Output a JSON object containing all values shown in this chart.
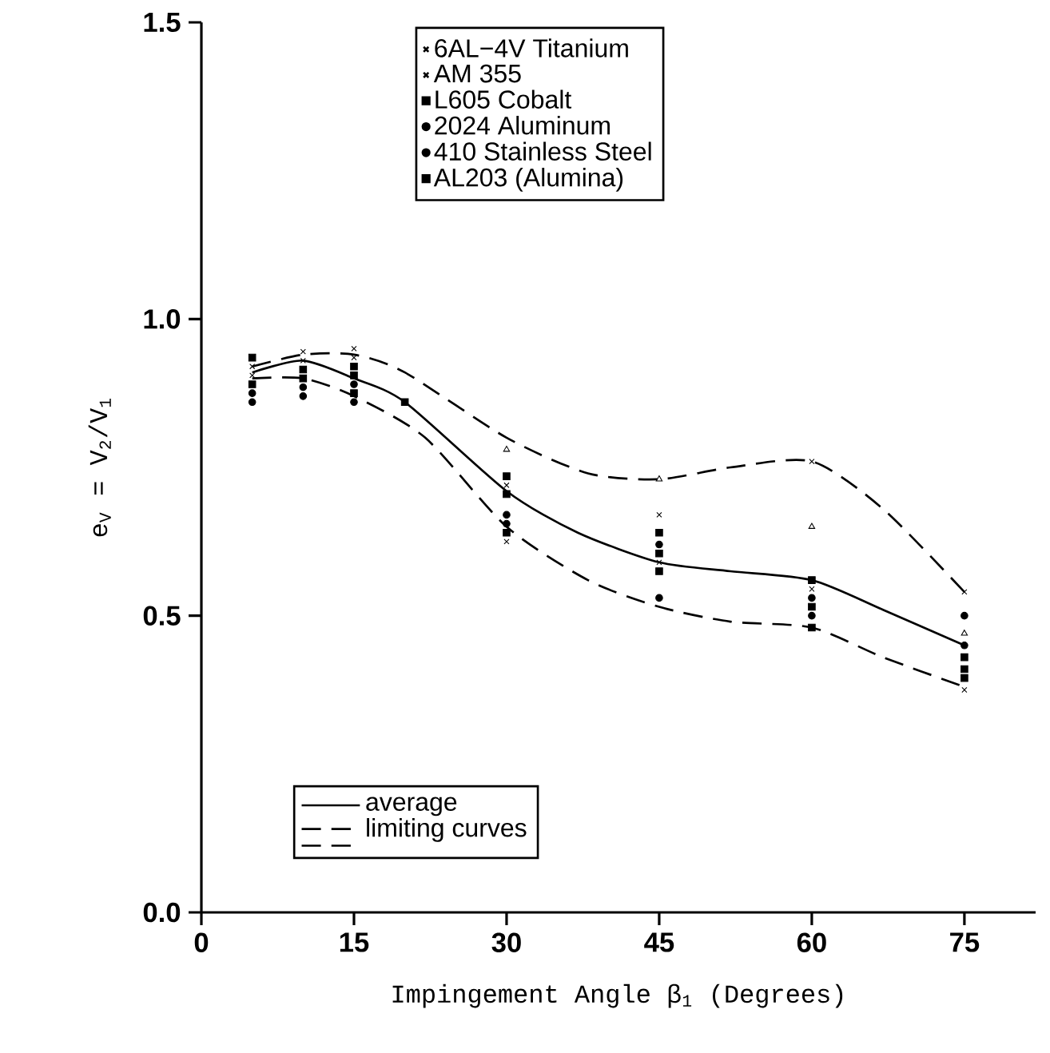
{
  "chart_data": {
    "type": "scatter",
    "xlabel": "Impingement Angle β$_{1}$ (Degrees)",
    "ylabel": "e$_{V}$ = V$_{2}$/V$_{1}$",
    "xlim": [
      0,
      82
    ],
    "ylim": [
      0,
      1.5
    ],
    "xticks": [
      0,
      15,
      30,
      45,
      60,
      75
    ],
    "yticks": [
      {
        "value": 0,
        "label": "0.0"
      },
      {
        "value": 0.5,
        "label": "0.5"
      },
      {
        "value": 1.0,
        "label": "1.0"
      },
      {
        "value": 1.5,
        "label": "1.5"
      }
    ],
    "legend": "top",
    "series": [
      {
        "name": "6AL−4V Titanium",
        "type": "scatter",
        "marker": "cross",
        "color": "#000000",
        "x": [
          5,
          10,
          15,
          30,
          45,
          60,
          75
        ],
        "values": [
          0.92,
          0.93,
          0.935,
          0.625,
          0.67,
          0.76,
          0.54
        ]
      },
      {
        "name": "AM 355",
        "type": "scatter",
        "marker": "cross",
        "color": "#000000",
        "x": [
          5,
          10,
          15,
          30,
          45,
          60,
          75
        ],
        "values": [
          0.905,
          0.945,
          0.95,
          0.72,
          0.59,
          0.545,
          0.375
        ]
      },
      {
        "name": "L605 Cobalt",
        "type": "scatter",
        "marker": "square",
        "color": "#000000",
        "x": [
          5,
          10,
          15,
          30,
          45,
          60,
          75
        ],
        "values": [
          0.89,
          0.9,
          0.92,
          0.735,
          0.605,
          0.56,
          0.41
        ]
      },
      {
        "name": "2024 Aluminum",
        "type": "scatter",
        "marker": "circle",
        "color": "#000000",
        "x": [
          5,
          10,
          15,
          30,
          45,
          60,
          75
        ],
        "values": [
          0.875,
          0.885,
          0.89,
          0.67,
          0.62,
          0.53,
          0.45
        ]
      },
      {
        "name": "410 Stainless Steel",
        "type": "scatter",
        "marker": "circle",
        "color": "#000000",
        "x": [
          5,
          10,
          15,
          30,
          45,
          60,
          75
        ],
        "values": [
          0.86,
          0.87,
          0.86,
          0.655,
          0.53,
          0.5,
          0.5
        ]
      },
      {
        "name": "AL203 (Alumina)",
        "type": "scatter",
        "marker": "square",
        "color": "#000000",
        "x": [
          5,
          10,
          15,
          30,
          45,
          60,
          75
        ],
        "values": [
          0.935,
          0.915,
          0.905,
          0.705,
          0.575,
          0.48,
          0.395
        ]
      },
      {
        "name": "average",
        "type": "line",
        "line_style": "solid",
        "color": "#000000",
        "x": [
          5,
          10,
          15,
          20,
          30,
          37,
          45,
          52,
          60,
          67,
          75
        ],
        "values": [
          0.91,
          0.93,
          0.9,
          0.86,
          0.71,
          0.64,
          0.59,
          0.575,
          0.56,
          0.51,
          0.45
        ]
      },
      {
        "name": "limiting curves",
        "type": "line",
        "line_style": "dashed",
        "color": "#000000",
        "x": [
          5,
          10,
          15,
          22,
          30,
          38,
          45,
          52,
          60,
          67,
          75
        ],
        "values": [
          0.9,
          0.9,
          0.87,
          0.8,
          0.65,
          0.56,
          0.515,
          0.49,
          0.48,
          0.43,
          0.38
        ]
      },
      {
        "type": "line",
        "line_style": "dashed",
        "color": "#000000",
        "x": [
          5,
          10,
          15,
          20,
          30,
          38,
          45,
          52,
          60,
          67,
          75
        ],
        "values": [
          0.92,
          0.94,
          0.94,
          0.91,
          0.8,
          0.74,
          0.73,
          0.75,
          0.76,
          0.68,
          0.54
        ]
      },
      {
        "type": "scatter",
        "marker": "triangle",
        "color": "#000000",
        "x": [
          30,
          45,
          60,
          75
        ],
        "values": [
          0.78,
          0.73,
          0.65,
          0.47
        ]
      },
      {
        "type": "scatter",
        "marker": "square",
        "color": "#000000",
        "x": [
          15,
          20,
          30,
          45,
          60,
          75
        ],
        "values": [
          0.875,
          0.86,
          0.64,
          0.64,
          0.515,
          0.43
        ]
      }
    ]
  }
}
